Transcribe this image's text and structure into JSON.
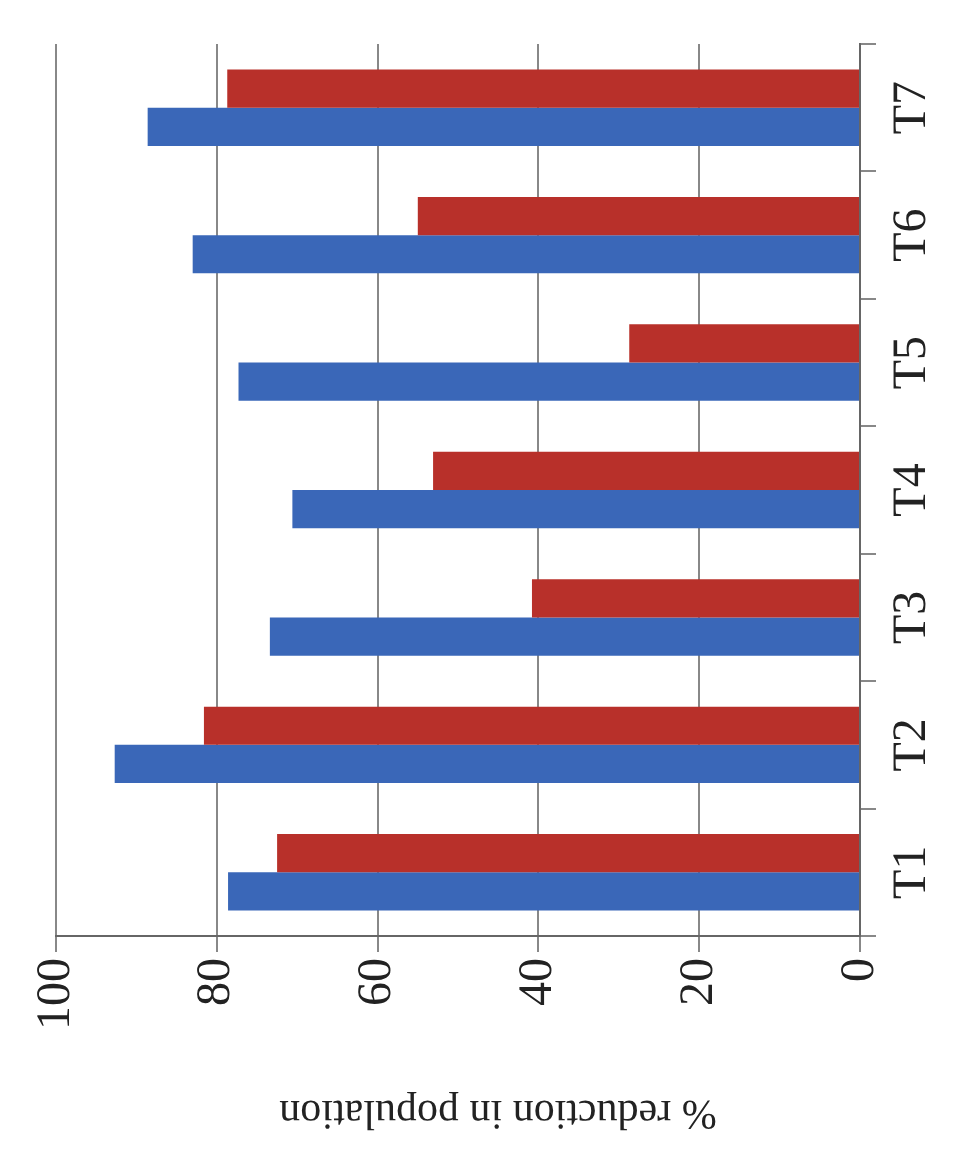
{
  "chart_data": {
    "type": "bar",
    "orientation": "horizontal",
    "xlabel": "% reduction in population",
    "categories": [
      "T7",
      "T6",
      "T5",
      "T4",
      "T3",
      "T2",
      "T1"
    ],
    "series": [
      {
        "color": "#b8302a",
        "values": [
          78.7,
          55.0,
          28.7,
          53.1,
          40.8,
          81.6,
          72.5
        ]
      },
      {
        "color": "#3a67b8",
        "values": [
          88.6,
          83.0,
          77.3,
          70.6,
          73.4,
          92.7,
          78.6
        ]
      }
    ],
    "xlim": [
      100,
      0
    ],
    "xticks": [
      100,
      80,
      60,
      40,
      20,
      0
    ],
    "grid": "x",
    "legend": false
  }
}
